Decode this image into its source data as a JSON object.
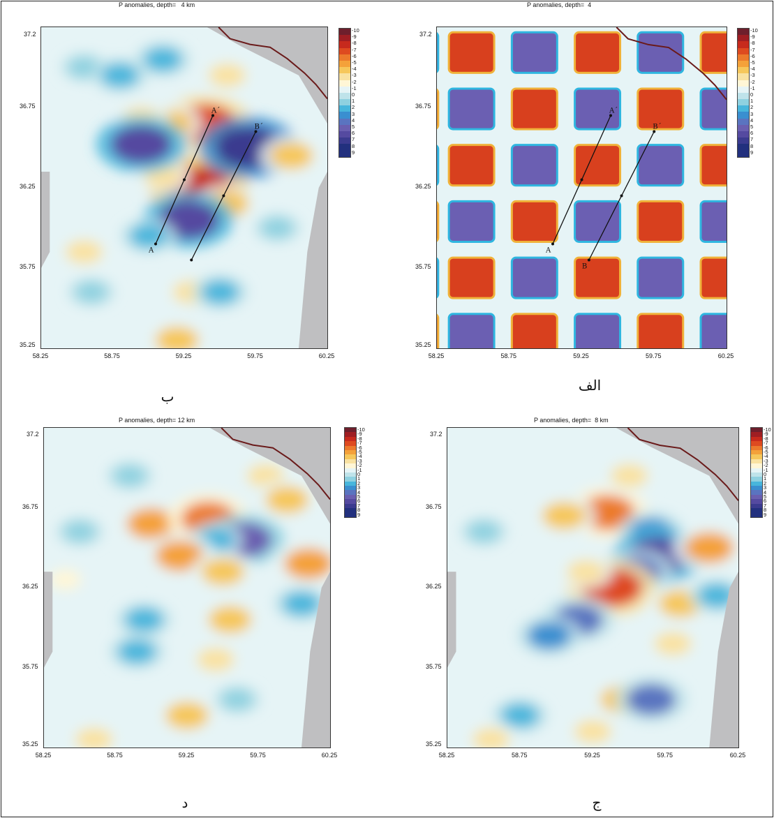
{
  "colors": {
    "scale": [
      "#6e1f2c",
      "#9f1e23",
      "#c72a1d",
      "#de4a20",
      "#ec7a2c",
      "#f4a13a",
      "#f6c75b",
      "#f9e2a2",
      "#fff6d6",
      "#e6f4f6",
      "#bfe3ea",
      "#8fd1e0",
      "#48b6dc",
      "#3a8fd0",
      "#5a74c0",
      "#6a5fb0",
      "#554aa0",
      "#3b3b8f",
      "#22307e"
    ],
    "land_mask": "#bfbfc1",
    "coast": "#6a1a1a"
  },
  "colorbar_labels": [
    "-10",
    "-9",
    "-8",
    "-7",
    "-6",
    "-5",
    "-4",
    "-3",
    "-2",
    "-1",
    "0",
    "1",
    "2",
    "3",
    "4",
    "5",
    "6",
    "7",
    "8",
    "9"
  ],
  "captions": {
    "top_left": "ب",
    "top_right": "الف",
    "bottom_left": "د",
    "bottom_right": "ج"
  },
  "chart_data": [
    {
      "type": "heatmap",
      "title": "P anomalies, depth=   4 km",
      "x_ticks": [
        "58.25",
        "58.75",
        "59.25",
        "59.75",
        "60.25"
      ],
      "y_ticks": [
        "37.2",
        "36.75",
        "36.25",
        "35.75",
        "35.25"
      ],
      "xlim": [
        58.25,
        60.25
      ],
      "ylim": [
        35.25,
        37.25
      ],
      "value_range": [
        -10,
        9
      ],
      "profiles": [
        {
          "start": "A",
          "end": "A´",
          "from": [
            59.05,
            35.9
          ],
          "to": [
            59.45,
            36.7
          ]
        },
        {
          "start": "",
          "end": "B´",
          "from": [
            59.3,
            35.8
          ],
          "to": [
            59.75,
            36.6
          ]
        }
      ],
      "anomalies": [
        {
          "x": 59.4,
          "y": 36.65,
          "v": -7
        },
        {
          "x": 59.15,
          "y": 36.65,
          "v": -4
        },
        {
          "x": 58.95,
          "y": 36.68,
          "v": -3
        },
        {
          "x": 59.35,
          "y": 36.25,
          "v": -8
        },
        {
          "x": 59.55,
          "y": 36.15,
          "v": -4
        },
        {
          "x": 59.1,
          "y": 36.32,
          "v": -3
        },
        {
          "x": 58.95,
          "y": 36.52,
          "v": 7
        },
        {
          "x": 59.7,
          "y": 36.5,
          "v": 8
        },
        {
          "x": 59.28,
          "y": 36.05,
          "v": 7
        },
        {
          "x": 59.0,
          "y": 35.95,
          "v": 3
        },
        {
          "x": 59.55,
          "y": 36.95,
          "v": -3
        },
        {
          "x": 59.2,
          "y": 35.3,
          "v": -4
        },
        {
          "x": 59.3,
          "y": 35.6,
          "v": -3
        },
        {
          "x": 59.5,
          "y": 35.6,
          "v": 3
        },
        {
          "x": 58.55,
          "y": 35.85,
          "v": -3
        },
        {
          "x": 60.0,
          "y": 36.45,
          "v": -4
        },
        {
          "x": 58.55,
          "y": 37.0,
          "v": 2
        },
        {
          "x": 58.8,
          "y": 36.95,
          "v": 3
        },
        {
          "x": 58.6,
          "y": 35.6,
          "v": 2
        },
        {
          "x": 59.9,
          "y": 36.0,
          "v": 2
        },
        {
          "x": 59.1,
          "y": 37.05,
          "v": 3
        }
      ]
    },
    {
      "type": "heatmap",
      "title": "P anomalies, depth=  4",
      "x_ticks": [
        "58.25",
        "58.75",
        "59.25",
        "59.75",
        "60.25"
      ],
      "y_ticks": [
        "37.2",
        "36.75",
        "36.25",
        "35.75",
        "35.25"
      ],
      "xlim": [
        58.25,
        60.25
      ],
      "ylim": [
        35.25,
        37.25
      ],
      "value_range": [
        -10,
        9
      ],
      "pattern": "checkerboard",
      "profiles": [
        {
          "start": "A",
          "end": "A´",
          "from": [
            59.05,
            35.9
          ],
          "to": [
            59.45,
            36.7
          ]
        },
        {
          "start": "B",
          "end": "B´",
          "from": [
            59.3,
            35.8
          ],
          "to": [
            59.75,
            36.6
          ]
        }
      ]
    },
    {
      "type": "heatmap",
      "title": "P anomalies, depth= 12 km",
      "x_ticks": [
        "58.25",
        "58.75",
        "59.25",
        "59.75",
        "60.25"
      ],
      "y_ticks": [
        "37.2",
        "36.75",
        "36.25",
        "35.75",
        "35.25"
      ],
      "xlim": [
        58.25,
        60.25
      ],
      "ylim": [
        35.25,
        37.25
      ],
      "value_range": [
        -10,
        9
      ],
      "anomalies": [
        {
          "x": 59.0,
          "y": 36.65,
          "v": -5
        },
        {
          "x": 59.4,
          "y": 36.68,
          "v": -6
        },
        {
          "x": 59.65,
          "y": 36.55,
          "v": 6
        },
        {
          "x": 59.45,
          "y": 36.55,
          "v": 3
        },
        {
          "x": 59.2,
          "y": 36.45,
          "v": -5
        },
        {
          "x": 59.5,
          "y": 36.35,
          "v": -4
        },
        {
          "x": 60.1,
          "y": 36.4,
          "v": -5
        },
        {
          "x": 59.55,
          "y": 36.05,
          "v": -4
        },
        {
          "x": 59.45,
          "y": 35.8,
          "v": -3
        },
        {
          "x": 59.25,
          "y": 35.45,
          "v": -4
        },
        {
          "x": 58.95,
          "y": 36.05,
          "v": 3
        },
        {
          "x": 58.9,
          "y": 35.85,
          "v": 3
        },
        {
          "x": 59.6,
          "y": 35.55,
          "v": 2
        },
        {
          "x": 59.8,
          "y": 36.95,
          "v": -3
        },
        {
          "x": 59.95,
          "y": 36.8,
          "v": -4
        },
        {
          "x": 58.4,
          "y": 36.3,
          "v": -2
        },
        {
          "x": 58.6,
          "y": 35.3,
          "v": -3
        },
        {
          "x": 60.05,
          "y": 36.15,
          "v": 3
        },
        {
          "x": 58.85,
          "y": 36.95,
          "v": 2
        },
        {
          "x": 58.5,
          "y": 36.6,
          "v": 2
        }
      ]
    },
    {
      "type": "heatmap",
      "title": "P anomalies, depth=  8 km",
      "x_ticks": [
        "58.25",
        "58.75",
        "59.25",
        "59.75",
        "60.25"
      ],
      "y_ticks": [
        "37.2",
        "36.75",
        "36.25",
        "35.75",
        "35.25"
      ],
      "xlim": [
        58.25,
        60.25
      ],
      "ylim": [
        35.25,
        37.25
      ],
      "value_range": [
        -10,
        9
      ],
      "anomalies": [
        {
          "x": 59.35,
          "y": 36.72,
          "v": -6
        },
        {
          "x": 59.05,
          "y": 36.7,
          "v": -4
        },
        {
          "x": 59.65,
          "y": 36.6,
          "v": 4
        },
        {
          "x": 59.7,
          "y": 36.45,
          "v": 7
        },
        {
          "x": 59.55,
          "y": 36.35,
          "v": 5
        },
        {
          "x": 59.38,
          "y": 36.25,
          "v": -7
        },
        {
          "x": 59.2,
          "y": 36.35,
          "v": -3
        },
        {
          "x": 59.15,
          "y": 36.05,
          "v": 5
        },
        {
          "x": 58.95,
          "y": 35.95,
          "v": 4
        },
        {
          "x": 60.05,
          "y": 36.5,
          "v": -5
        },
        {
          "x": 59.85,
          "y": 36.15,
          "v": -4
        },
        {
          "x": 59.8,
          "y": 35.9,
          "v": -3
        },
        {
          "x": 59.45,
          "y": 35.55,
          "v": -4
        },
        {
          "x": 59.65,
          "y": 35.55,
          "v": 5
        },
        {
          "x": 59.25,
          "y": 35.35,
          "v": -3
        },
        {
          "x": 58.75,
          "y": 35.45,
          "v": 3
        },
        {
          "x": 59.5,
          "y": 36.95,
          "v": -3
        },
        {
          "x": 58.55,
          "y": 35.3,
          "v": -3
        },
        {
          "x": 60.1,
          "y": 36.2,
          "v": 3
        },
        {
          "x": 58.5,
          "y": 36.6,
          "v": 2
        }
      ]
    }
  ]
}
